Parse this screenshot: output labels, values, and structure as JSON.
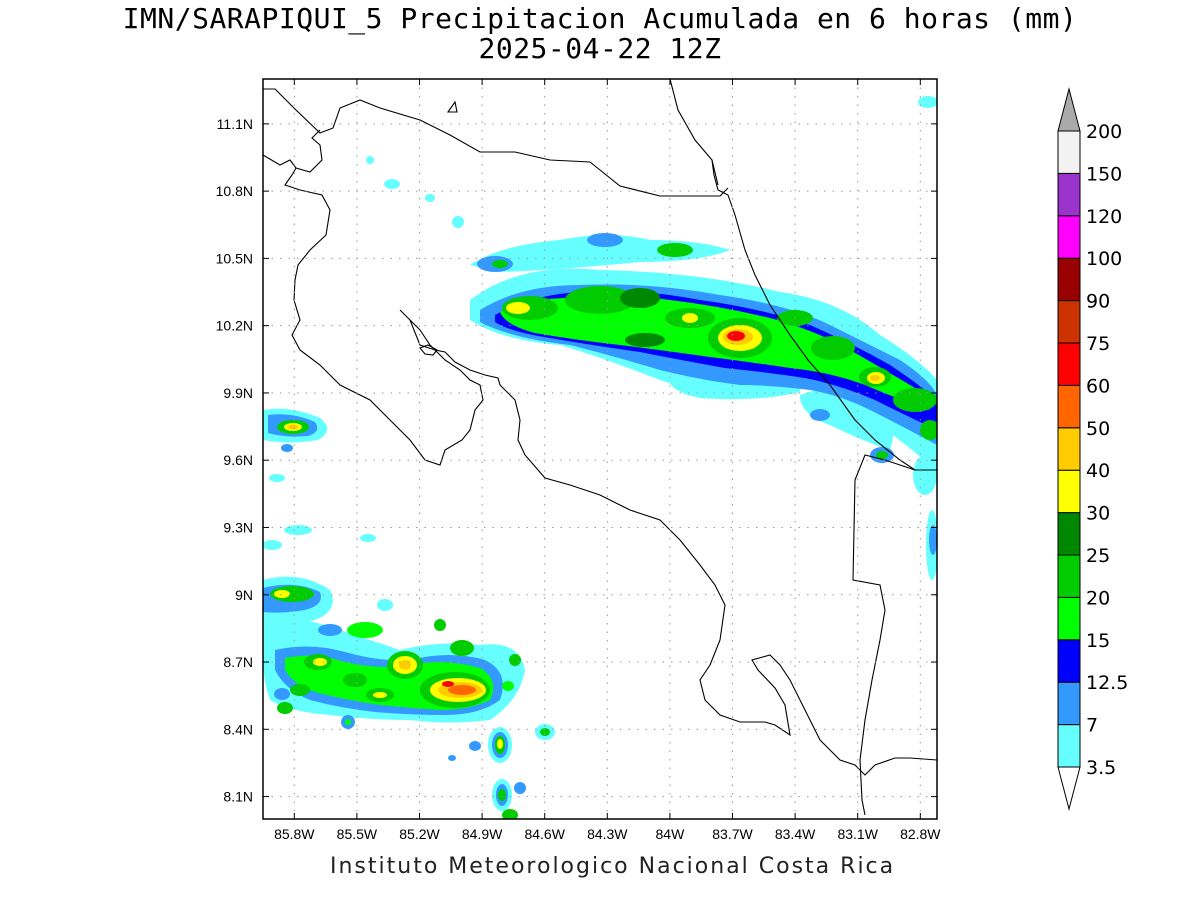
{
  "title_line1": "IMN/SARAPIQUI_5 Precipitacion Acumulada en 6 horas (mm)",
  "title_line2": "2025-04-22 12Z",
  "footer": "Instituto Meteorologico Nacional Costa Rica",
  "map": {
    "lon_range": [
      -85.95,
      -82.72
    ],
    "lat_range": [
      8.0,
      11.3
    ],
    "lon_ticks": [
      {
        "v": -85.8,
        "label": "85.8W"
      },
      {
        "v": -85.5,
        "label": "85.5W"
      },
      {
        "v": -85.2,
        "label": "85.2W"
      },
      {
        "v": -84.9,
        "label": "84.9W"
      },
      {
        "v": -84.6,
        "label": "84.6W"
      },
      {
        "v": -84.3,
        "label": "84.3W"
      },
      {
        "v": -84.0,
        "label": "84W"
      },
      {
        "v": -83.7,
        "label": "83.7W"
      },
      {
        "v": -83.4,
        "label": "83.4W"
      },
      {
        "v": -83.1,
        "label": "83.1W"
      },
      {
        "v": -82.8,
        "label": "82.8W"
      }
    ],
    "lat_ticks": [
      {
        "v": 8.1,
        "label": "8.1N"
      },
      {
        "v": 8.4,
        "label": "8.4N"
      },
      {
        "v": 8.7,
        "label": "8.7N"
      },
      {
        "v": 9.0,
        "label": "9N"
      },
      {
        "v": 9.3,
        "label": "9.3N"
      },
      {
        "v": 9.6,
        "label": "9.6N"
      },
      {
        "v": 9.9,
        "label": "9.9N"
      },
      {
        "v": 10.2,
        "label": "10.2N"
      },
      {
        "v": 10.5,
        "label": "10.5N"
      },
      {
        "v": 10.8,
        "label": "10.8N"
      },
      {
        "v": 11.1,
        "label": "11.1N"
      }
    ]
  },
  "colorbar": {
    "levels": [
      "3.5",
      "7",
      "12.5",
      "15",
      "20",
      "25",
      "30",
      "40",
      "50",
      "60",
      "75",
      "90",
      "100",
      "120",
      "150",
      "200"
    ],
    "colors": [
      "#ffffff",
      "#66ffff",
      "#3399ff",
      "#0000ff",
      "#00ff00",
      "#00cc00",
      "#008800",
      "#ffff00",
      "#ffcc00",
      "#ff6600",
      "#ff0000",
      "#cc3300",
      "#990000",
      "#ff00ff",
      "#9933cc",
      "#f2f2f2",
      "#aaaaaa"
    ]
  },
  "colors": {
    "light_cyan": "#66ffff",
    "light_blue": "#3399ff",
    "blue": "#0000ff",
    "green_light": "#00ff00",
    "green": "#00cc00",
    "green_dark": "#008800",
    "yellow": "#ffff00",
    "orange": "#ffcc00",
    "red": "#ff0000"
  }
}
